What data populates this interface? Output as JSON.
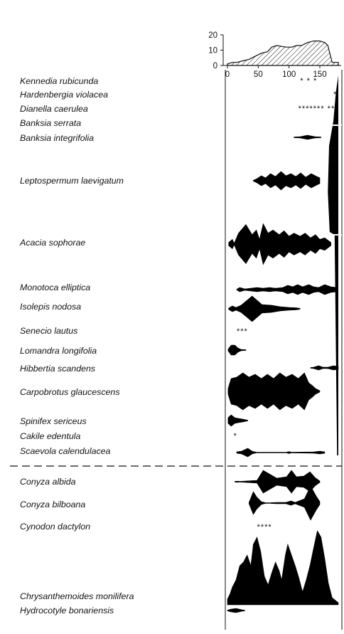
{
  "chart_data": {
    "type": "area",
    "title": "",
    "xlabel": "",
    "ylabel": "",
    "xlim": [
      0,
      180
    ],
    "grid": false,
    "summary_panel": {
      "ylim": [
        0,
        20
      ],
      "y_ticks": [
        "0",
        "10",
        "20"
      ],
      "x_ticks": [
        "0",
        "50",
        "100",
        "150"
      ],
      "profile": [
        [
          0,
          1
        ],
        [
          8,
          2
        ],
        [
          15,
          2
        ],
        [
          25,
          3
        ],
        [
          35,
          4
        ],
        [
          45,
          6
        ],
        [
          55,
          8
        ],
        [
          65,
          9
        ],
        [
          72,
          12
        ],
        [
          80,
          13
        ],
        [
          95,
          12
        ],
        [
          105,
          12
        ],
        [
          112,
          13
        ],
        [
          120,
          13
        ],
        [
          130,
          15
        ],
        [
          140,
          16
        ],
        [
          150,
          16
        ],
        [
          158,
          15
        ],
        [
          163,
          13
        ],
        [
          170,
          2
        ],
        [
          180,
          2
        ]
      ]
    },
    "species": [
      {
        "name": "Kennedia rubicunda",
        "points": [],
        "stars": "* * *",
        "stars_x": 118
      },
      {
        "name": "Hardenbergia violacea",
        "points": [],
        "stars": "*",
        "stars_x": 172
      },
      {
        "name": "Dianella caerulea",
        "points": [],
        "stars": "*******  **",
        "stars_x": 115
      },
      {
        "name": "Banksia serrata",
        "points": [],
        "stars": "",
        "stars_x": 0
      },
      {
        "name": "Banksia integrifolia",
        "points": [
          [
            108,
            0.5
          ],
          [
            118,
            1
          ],
          [
            130,
            3
          ],
          [
            142,
            1
          ],
          [
            152,
            0.5
          ]
        ],
        "stars": "",
        "stars_x": 0
      },
      {
        "name": "Leptospermum laevigatum",
        "points": [
          [
            42,
            0.5
          ],
          [
            48,
            3
          ],
          [
            55,
            7
          ],
          [
            62,
            4
          ],
          [
            70,
            10
          ],
          [
            78,
            6
          ],
          [
            87,
            13
          ],
          [
            95,
            7
          ],
          [
            103,
            10
          ],
          [
            111,
            6
          ],
          [
            119,
            11
          ],
          [
            127,
            5
          ],
          [
            136,
            10
          ],
          [
            145,
            6
          ],
          [
            150,
            4
          ]
        ],
        "stars": "",
        "stars_x": 0
      },
      {
        "name": "Acacia sophorae",
        "points": [
          [
            2,
            2
          ],
          [
            8,
            6
          ],
          [
            11,
            1
          ],
          [
            18,
            14
          ],
          [
            30,
            25
          ],
          [
            40,
            12
          ],
          [
            47,
            18
          ],
          [
            52,
            6
          ],
          [
            58,
            26
          ],
          [
            66,
            14
          ],
          [
            74,
            18
          ],
          [
            84,
            12
          ],
          [
            92,
            17
          ],
          [
            100,
            10
          ],
          [
            108,
            14
          ],
          [
            118,
            10
          ],
          [
            126,
            14
          ],
          [
            135,
            8
          ],
          [
            143,
            12
          ],
          [
            150,
            6
          ],
          [
            158,
            8
          ],
          [
            168,
            2
          ]
        ],
        "stars": "",
        "stars_x": 0
      },
      {
        "name": "Monotoca elliptica",
        "points": [
          [
            15,
            0.5
          ],
          [
            20,
            3
          ],
          [
            28,
            1
          ],
          [
            38,
            2
          ],
          [
            48,
            3
          ],
          [
            58,
            2
          ],
          [
            68,
            3
          ],
          [
            78,
            2
          ],
          [
            90,
            3
          ],
          [
            98,
            6
          ],
          [
            106,
            4
          ],
          [
            114,
            7
          ],
          [
            122,
            4
          ],
          [
            132,
            7
          ],
          [
            140,
            4
          ],
          [
            148,
            3
          ],
          [
            158,
            7
          ],
          [
            168,
            4
          ],
          [
            178,
            3
          ]
        ],
        "stars": "",
        "stars_x": 0
      },
      {
        "name": "Isolepis nodosa",
        "points": [
          [
            2,
            1
          ],
          [
            8,
            4
          ],
          [
            14,
            2
          ],
          [
            22,
            5
          ],
          [
            32,
            12
          ],
          [
            40,
            18
          ],
          [
            48,
            12
          ],
          [
            56,
            6
          ],
          [
            72,
            5
          ],
          [
            86,
            3
          ],
          [
            100,
            2
          ],
          [
            112,
            1.5
          ],
          [
            118,
            0.5
          ]
        ],
        "stars": "",
        "stars_x": 0
      },
      {
        "name": "Senecio lautus",
        "points": [],
        "stars": "***",
        "stars_x": 15
      },
      {
        "name": "Lomandra longifolia",
        "points": [
          [
            1,
            1
          ],
          [
            6,
            7
          ],
          [
            12,
            7
          ],
          [
            17,
            3
          ],
          [
            22,
            1
          ],
          [
            30,
            0.5
          ]
        ],
        "stars": "",
        "stars_x": 0
      },
      {
        "name": "Hibbertia scandens",
        "points": [
          [
            135,
            0.5
          ],
          [
            140,
            1
          ],
          [
            148,
            3
          ],
          [
            155,
            1
          ],
          [
            163,
            1
          ],
          [
            172,
            3
          ],
          [
            180,
            2
          ]
        ],
        "stars": "",
        "stars_x": 0
      },
      {
        "name": "Carpobrotus glaucescens",
        "points": [
          [
            1,
            4
          ],
          [
            6,
            18
          ],
          [
            15,
            20
          ],
          [
            25,
            26
          ],
          [
            35,
            20
          ],
          [
            45,
            24
          ],
          [
            55,
            18
          ],
          [
            65,
            24
          ],
          [
            75,
            18
          ],
          [
            85,
            26
          ],
          [
            95,
            20
          ],
          [
            105,
            24
          ],
          [
            115,
            18
          ],
          [
            125,
            26
          ],
          [
            132,
            12
          ],
          [
            138,
            8
          ],
          [
            143,
            4
          ],
          [
            150,
            1
          ]
        ],
        "stars": "",
        "stars_x": 0
      },
      {
        "name": "Spinifex sericeus",
        "points": [
          [
            1,
            4
          ],
          [
            6,
            8
          ],
          [
            12,
            4
          ],
          [
            18,
            3
          ],
          [
            25,
            2
          ],
          [
            33,
            0.5
          ]
        ],
        "stars": "",
        "stars_x": 0
      },
      {
        "name": "Cakile edentula",
        "points": [],
        "stars": "*",
        "stars_x": 10
      },
      {
        "name": "Scaevola calendulacea",
        "points": [
          [
            15,
            1
          ],
          [
            23,
            2
          ],
          [
            33,
            6
          ],
          [
            40,
            2
          ],
          [
            47,
            0.5
          ],
          [
            58,
            0.5
          ],
          [
            96,
            0.5
          ],
          [
            100,
            1.5
          ],
          [
            104,
            0.5
          ],
          [
            140,
            1
          ],
          [
            150,
            2
          ],
          [
            158,
            1
          ]
        ],
        "stars": "",
        "stars_x": 0
      },
      {
        "name": "Conyza albida",
        "points": [
          [
            12,
            0.5
          ],
          [
            16,
            0.8
          ],
          [
            20,
            0.5
          ],
          [
            48,
            2
          ],
          [
            58,
            16
          ],
          [
            70,
            10
          ],
          [
            80,
            5
          ],
          [
            96,
            7
          ],
          [
            104,
            16
          ],
          [
            112,
            7
          ],
          [
            124,
            8
          ],
          [
            134,
            14
          ],
          [
            142,
            6
          ],
          [
            150,
            1
          ]
        ],
        "stars": "",
        "stars_x": 0
      },
      {
        "name": "Conyza bilboana",
        "points": [
          [
            35,
            1
          ],
          [
            42,
            16
          ],
          [
            48,
            8
          ],
          [
            55,
            2
          ],
          [
            62,
            0.5
          ],
          [
            70,
            0.5
          ],
          [
            80,
            1
          ],
          [
            95,
            1
          ],
          [
            103,
            3
          ],
          [
            110,
            1
          ],
          [
            125,
            6
          ],
          [
            135,
            24
          ],
          [
            144,
            10
          ],
          [
            150,
            2
          ]
        ],
        "stars": "",
        "stars_x": 0
      },
      {
        "name": "Cynodon dactylon",
        "points": [],
        "stars": "****",
        "stars_x": 48
      },
      {
        "name": "Chrysanthemoides monilifera",
        "points": [
          [
            0,
            8
          ],
          [
            4,
            15
          ],
          [
            8,
            25
          ],
          [
            14,
            35
          ],
          [
            20,
            55
          ],
          [
            26,
            60
          ],
          [
            32,
            70
          ],
          [
            38,
            55
          ],
          [
            42,
            85
          ],
          [
            48,
            95
          ],
          [
            54,
            75
          ],
          [
            60,
            40
          ],
          [
            66,
            28
          ],
          [
            72,
            45
          ],
          [
            78,
            60
          ],
          [
            84,
            48
          ],
          [
            88,
            35
          ],
          [
            94,
            70
          ],
          [
            98,
            85
          ],
          [
            104,
            70
          ],
          [
            110,
            55
          ],
          [
            116,
            38
          ],
          [
            122,
            18
          ],
          [
            128,
            35
          ],
          [
            134,
            55
          ],
          [
            140,
            80
          ],
          [
            146,
            104
          ],
          [
            152,
            95
          ],
          [
            158,
            65
          ],
          [
            164,
            30
          ],
          [
            170,
            10
          ],
          [
            180,
            3
          ]
        ],
        "stars": "",
        "stars_x": 0
      },
      {
        "name": "Hydrocotyle bonariensis",
        "points": [
          [
            0,
            0.5
          ],
          [
            6,
            2
          ],
          [
            14,
            3
          ],
          [
            24,
            1
          ],
          [
            28,
            0.5
          ]
        ],
        "stars": "",
        "stars_x": 0
      }
    ]
  }
}
